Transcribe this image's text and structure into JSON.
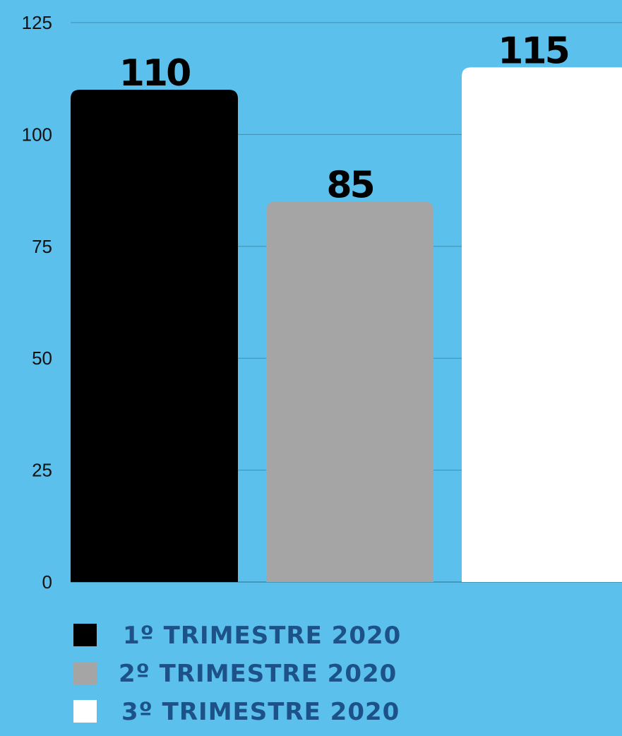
{
  "chart_data": {
    "type": "bar",
    "categories": [
      "1º TRIMESTRE 2020",
      "2º TRIMESTRE 2020",
      "3º TRIMESTRE 2020"
    ],
    "values": [
      110,
      85,
      115
    ],
    "data_labels": [
      "110",
      "85",
      "115"
    ],
    "colors": [
      "#000000",
      "#a5a5a5",
      "#ffffff"
    ],
    "yticks": [
      0,
      25,
      50,
      75,
      100,
      125
    ],
    "ylim": [
      0,
      125
    ],
    "title": "",
    "xlabel": "",
    "ylabel": "",
    "grid": true,
    "legend_position": "bottom-left"
  },
  "legend": {
    "items": [
      "1º TRIMESTRE 2020",
      "2º TRIMESTRE 2020",
      "3º TRIMESTRE 2020"
    ]
  },
  "colors": {
    "background": "#5bc1ec",
    "gridline": "#3e8fb3",
    "legend_text": "#1d5289",
    "axis_text": "#111111"
  }
}
